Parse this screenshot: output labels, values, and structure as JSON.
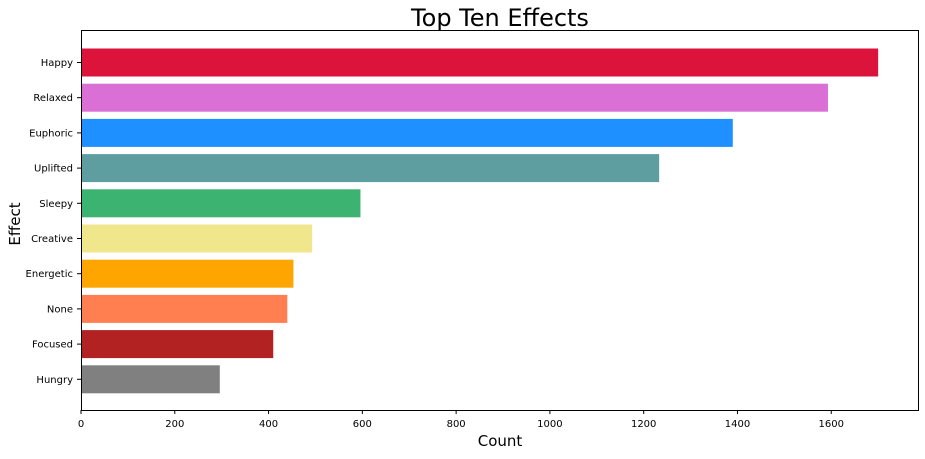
{
  "chart_data": {
    "type": "bar",
    "orientation": "horizontal",
    "title": "Top Ten Effects",
    "xlabel": "Count",
    "ylabel": "Effect",
    "categories": [
      "Happy",
      "Relaxed",
      "Euphoric",
      "Uplifted",
      "Sleepy",
      "Creative",
      "Energetic",
      "None",
      "Focused",
      "Hungry"
    ],
    "values": [
      1700,
      1593,
      1390,
      1233,
      596,
      493,
      453,
      440,
      410,
      296
    ],
    "colors": [
      "#DC143C",
      "#DA70D6",
      "#1E90FF",
      "#5F9EA0",
      "#3CB371",
      "#F0E68C",
      "#FFA500",
      "#FF7F50",
      "#B22222",
      "#808080"
    ],
    "xlim": [
      0,
      1785
    ],
    "xticks": [
      0,
      200,
      400,
      600,
      800,
      1000,
      1200,
      1400,
      1600
    ],
    "grid": false,
    "legend": false
  }
}
